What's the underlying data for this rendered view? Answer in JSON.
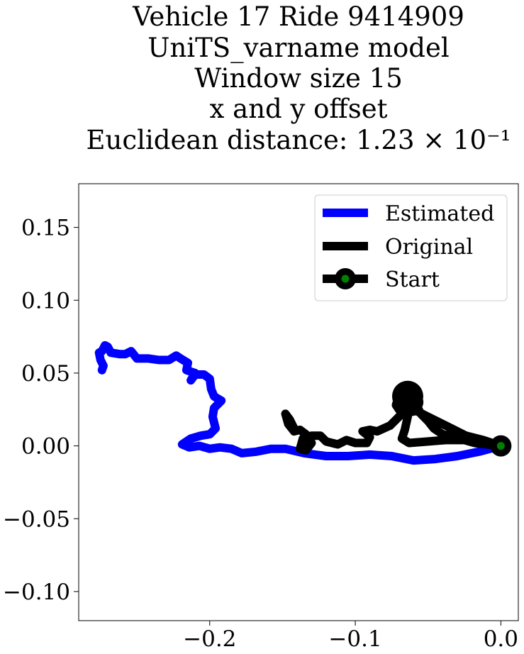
{
  "chart_data": {
    "type": "line",
    "title_lines": [
      "Vehicle 17 Ride 9414909",
      "UniTS_varname model",
      "Window size 15",
      "x and y offset",
      "Euclidean distance: 1.23 × 10⁻¹"
    ],
    "xlabel": "",
    "ylabel": "",
    "xlim": [
      -0.29,
      0.012
    ],
    "ylim": [
      -0.12,
      0.18
    ],
    "x_ticks": [
      -0.2,
      -0.1,
      0.0
    ],
    "x_tick_labels": [
      "−0.2",
      "−0.1",
      "0.0"
    ],
    "y_ticks": [
      -0.1,
      -0.05,
      0.0,
      0.05,
      0.1,
      0.15
    ],
    "y_tick_labels": [
      "−0.10",
      "−0.05",
      "0.00",
      "0.05",
      "0.10",
      "0.15"
    ],
    "grid": false,
    "legend_position": "top-right",
    "series": [
      {
        "name": "Estimated",
        "color": "#0000ff",
        "points": [
          [
            0.0,
            0.0
          ],
          [
            -0.015,
            -0.004
          ],
          [
            -0.03,
            -0.007
          ],
          [
            -0.045,
            -0.009
          ],
          [
            -0.06,
            -0.01
          ],
          [
            -0.075,
            -0.007
          ],
          [
            -0.09,
            -0.006
          ],
          [
            -0.105,
            -0.007
          ],
          [
            -0.12,
            -0.007
          ],
          [
            -0.135,
            -0.005
          ],
          [
            -0.148,
            -0.002
          ],
          [
            -0.158,
            -0.002
          ],
          [
            -0.168,
            -0.004
          ],
          [
            -0.178,
            -0.005
          ],
          [
            -0.185,
            -0.002
          ],
          [
            -0.193,
            -0.001
          ],
          [
            -0.2,
            -0.002
          ],
          [
            -0.207,
            0.0
          ],
          [
            -0.214,
            -0.001
          ],
          [
            -0.219,
            0.001
          ],
          [
            -0.213,
            0.005
          ],
          [
            -0.206,
            0.007
          ],
          [
            -0.2,
            0.008
          ],
          [
            -0.196,
            0.012
          ],
          [
            -0.198,
            0.02
          ],
          [
            -0.197,
            0.026
          ],
          [
            -0.192,
            0.031
          ],
          [
            -0.197,
            0.034
          ],
          [
            -0.199,
            0.039
          ],
          [
            -0.2,
            0.046
          ],
          [
            -0.204,
            0.049
          ],
          [
            -0.21,
            0.049
          ],
          [
            -0.213,
            0.045
          ],
          [
            -0.21,
            0.05
          ],
          [
            -0.216,
            0.052
          ],
          [
            -0.215,
            0.057
          ],
          [
            -0.22,
            0.06
          ],
          [
            -0.223,
            0.062
          ],
          [
            -0.228,
            0.059
          ],
          [
            -0.235,
            0.059
          ],
          [
            -0.242,
            0.06
          ],
          [
            -0.25,
            0.06
          ],
          [
            -0.254,
            0.065
          ],
          [
            -0.258,
            0.063
          ],
          [
            -0.262,
            0.063
          ],
          [
            -0.268,
            0.064
          ],
          [
            -0.27,
            0.068
          ],
          [
            -0.272,
            0.069
          ],
          [
            -0.274,
            0.065
          ],
          [
            -0.276,
            0.064
          ],
          [
            -0.275,
            0.059
          ],
          [
            -0.273,
            0.055
          ],
          [
            -0.274,
            0.052
          ]
        ]
      },
      {
        "name": "Original",
        "color": "#000000",
        "points": [
          [
            0.0,
            0.0
          ],
          [
            -0.018,
            0.002
          ],
          [
            -0.032,
            0.006
          ],
          [
            -0.04,
            0.008
          ],
          [
            -0.046,
            0.012
          ],
          [
            -0.05,
            0.017
          ],
          [
            -0.055,
            0.022
          ],
          [
            -0.058,
            0.028
          ],
          [
            -0.062,
            0.033
          ],
          [
            -0.066,
            0.037
          ],
          [
            -0.07,
            0.035
          ],
          [
            -0.072,
            0.028
          ],
          [
            -0.068,
            0.022
          ],
          [
            -0.063,
            0.025
          ],
          [
            -0.059,
            0.03
          ],
          [
            -0.058,
            0.036
          ],
          [
            -0.062,
            0.041
          ],
          [
            -0.066,
            0.04
          ],
          [
            -0.07,
            0.033
          ],
          [
            -0.068,
            0.025
          ],
          [
            -0.064,
            0.02
          ],
          [
            -0.066,
            0.011
          ],
          [
            -0.068,
            0.005
          ],
          [
            -0.063,
            0.002
          ],
          [
            -0.05,
            0.003
          ],
          [
            -0.038,
            0.004
          ],
          [
            -0.025,
            0.004
          ],
          [
            -0.012,
            0.002
          ],
          [
            0.0,
            0.0
          ],
          [
            -0.012,
            0.004
          ],
          [
            -0.024,
            0.007
          ],
          [
            -0.036,
            0.013
          ],
          [
            -0.048,
            0.019
          ],
          [
            -0.058,
            0.024
          ],
          [
            -0.068,
            0.022
          ],
          [
            -0.076,
            0.014
          ],
          [
            -0.085,
            0.01
          ],
          [
            -0.09,
            0.011
          ],
          [
            -0.095,
            0.01
          ],
          [
            -0.09,
            0.006
          ],
          [
            -0.092,
            0.002
          ],
          [
            -0.1,
            0.002
          ],
          [
            -0.106,
            0.004
          ],
          [
            -0.112,
            0.001
          ],
          [
            -0.12,
            0.003
          ],
          [
            -0.124,
            0.007
          ],
          [
            -0.13,
            0.007
          ],
          [
            -0.136,
            0.005
          ],
          [
            -0.138,
            -0.002
          ],
          [
            -0.134,
            -0.003
          ],
          [
            -0.13,
            0.002
          ],
          [
            -0.134,
            0.008
          ],
          [
            -0.138,
            0.011
          ],
          [
            -0.142,
            0.01
          ],
          [
            -0.146,
            0.015
          ],
          [
            -0.148,
            0.022
          ],
          [
            -0.145,
            0.018
          ],
          [
            -0.142,
            0.012
          ]
        ]
      }
    ],
    "start_marker": {
      "name": "Start",
      "x": 0.0,
      "y": 0.0,
      "edge_color": "#000000",
      "face_color": "#008000"
    }
  }
}
